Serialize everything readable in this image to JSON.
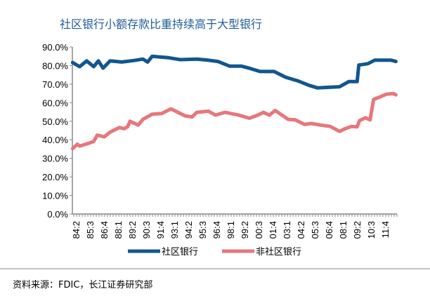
{
  "chart_data": {
    "type": "line",
    "title": "社区银行小额存款比重持续高于大型银行",
    "xlabel": "",
    "ylabel": "",
    "ylim": [
      0,
      90
    ],
    "x_unit": "year (decimal)",
    "yticks": [
      "0.0%",
      "10.0%",
      "20.0%",
      "30.0%",
      "40.0%",
      "50.0%",
      "60.0%",
      "70.0%",
      "80.0%",
      "90.0%"
    ],
    "xticks": [
      "84:2",
      "85:3",
      "86:4",
      "88:1",
      "89:2",
      "90:3",
      "91:4",
      "93:1",
      "94:2",
      "95:3",
      "96:4",
      "98:1",
      "99:2",
      "00:3",
      "01:4",
      "03:1",
      "04:2",
      "05:3",
      "06:4",
      "08:1",
      "09:2",
      "10:3",
      "11:4"
    ],
    "xtick_start": 1984.25,
    "xtick_step": 1.25,
    "grid": false,
    "legend_position": "bottom",
    "series": [
      {
        "name": "社区银行",
        "color": "#11568f",
        "x": [
          1983.96,
          1984.58,
          1985.21,
          1985.83,
          1986.25,
          1986.67,
          1987.29,
          1988.33,
          1989.38,
          1990.21,
          1990.63,
          1991.04,
          1992.5,
          1993.54,
          1995.0,
          1996.04,
          1996.88,
          1997.92,
          1998.96,
          1999.79,
          2000.63,
          2001.88,
          2002.92,
          2003.96,
          2005.0,
          2005.73,
          2007.71,
          2008.54,
          2009.27,
          2009.42,
          2010.21,
          2010.83,
          2012.29,
          2012.71
        ],
        "values": [
          81.6,
          79.4,
          82.5,
          79.4,
          82.5,
          78.6,
          82.5,
          81.9,
          82.7,
          83.5,
          81.9,
          85.0,
          84.2,
          83.2,
          83.5,
          82.9,
          82.2,
          79.7,
          79.7,
          78.4,
          76.8,
          76.8,
          73.7,
          71.8,
          69.3,
          68.0,
          68.6,
          71.4,
          71.4,
          80.3,
          81.0,
          82.9,
          82.9,
          82.2
        ]
      },
      {
        "name": "非社区银行",
        "color": "#e8767a",
        "x": [
          1983.96,
          1984.38,
          1984.58,
          1985.42,
          1985.83,
          1986.15,
          1986.77,
          1987.29,
          1988.13,
          1988.54,
          1988.85,
          1989.06,
          1989.79,
          1990.21,
          1991.04,
          1991.88,
          1992.71,
          1993.33,
          1993.96,
          1994.58,
          1995.0,
          1996.04,
          1996.67,
          1997.5,
          1998.75,
          1999.69,
          2000.42,
          2000.94,
          2001.46,
          2001.98,
          2003.13,
          2003.75,
          2004.58,
          2005.21,
          2006.04,
          2006.88,
          2007.71,
          2008.13,
          2008.75,
          2009.27,
          2009.48,
          2010.0,
          2010.42,
          2010.73,
          2011.25,
          2011.88,
          2012.5,
          2012.71
        ],
        "values": [
          35.3,
          37.6,
          36.6,
          38.2,
          39.1,
          42.5,
          41.6,
          44.1,
          46.6,
          46.0,
          47.0,
          50.0,
          47.9,
          51.0,
          53.8,
          54.2,
          56.7,
          54.8,
          52.9,
          52.3,
          54.8,
          55.4,
          53.3,
          54.8,
          53.3,
          51.6,
          53.3,
          54.8,
          53.3,
          55.8,
          51.0,
          50.8,
          48.3,
          48.8,
          47.9,
          47.2,
          44.5,
          45.8,
          47.2,
          47.0,
          50.3,
          51.9,
          50.7,
          61.7,
          63.0,
          64.6,
          64.9,
          64.2
        ]
      }
    ]
  },
  "source": "资料来源：FDIC，长江证券研究部"
}
